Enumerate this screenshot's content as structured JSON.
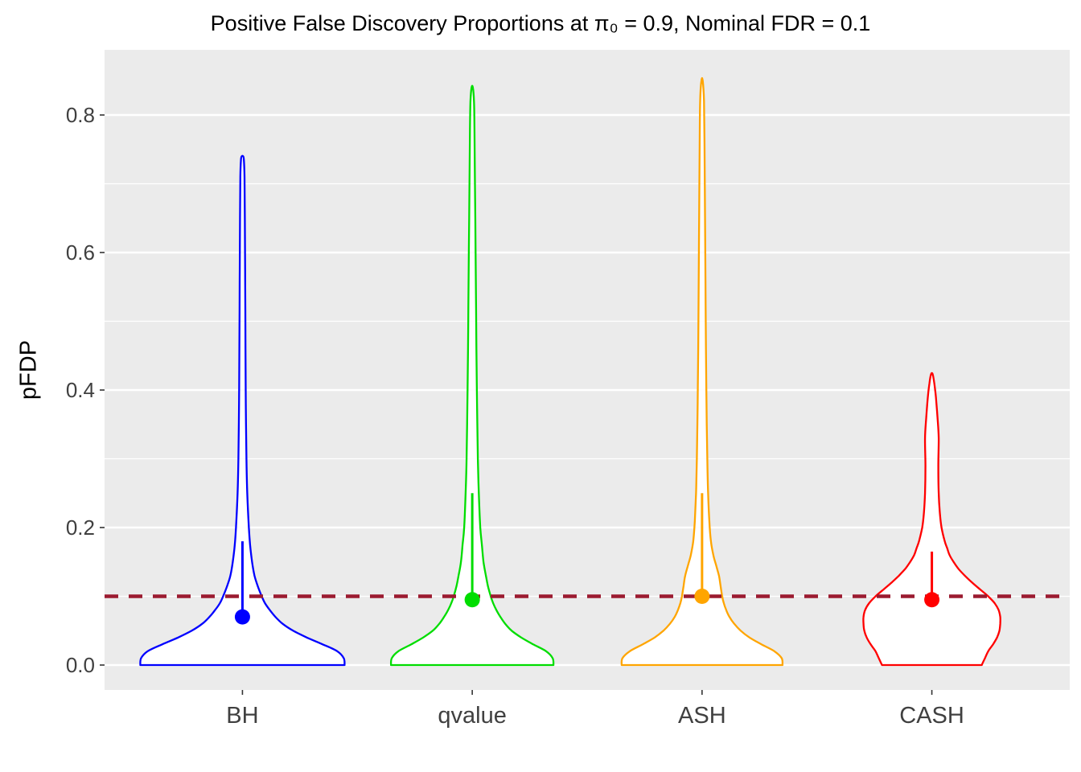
{
  "chart_data": {
    "type": "violin",
    "title": "Positive False Discovery Proportions at π₀ = 0.9, Nominal FDR = 0.1",
    "ylabel": "pFDP",
    "categories": [
      "BH",
      "qvalue",
      "ASH",
      "CASH"
    ],
    "ytick_labels": [
      "0.0",
      "0.2",
      "0.4",
      "0.6",
      "0.8"
    ],
    "yticks": [
      0.0,
      0.2,
      0.4,
      0.6,
      0.8
    ],
    "yticks_minor": [
      0.1,
      0.3,
      0.5,
      0.7
    ],
    "ylim": [
      -0.036,
      0.895
    ],
    "panel_bg": "#EBEBEB",
    "grid_color": "#FFFFFF",
    "tick_label_color": "#404040",
    "legend": "none",
    "reference_line": {
      "value": 0.1,
      "color": "#9B1B30",
      "style": "dashed",
      "meaning": "Nominal FDR = 0.1"
    },
    "series": [
      {
        "name": "BH",
        "color": "#0000FF",
        "mean": 0.07,
        "whisker_top": 0.18,
        "peak": 0.74,
        "profile": [
          [
            0.0,
            127
          ],
          [
            0.01,
            126
          ],
          [
            0.02,
            118
          ],
          [
            0.03,
            100
          ],
          [
            0.04,
            80
          ],
          [
            0.05,
            63
          ],
          [
            0.06,
            50
          ],
          [
            0.07,
            41
          ],
          [
            0.08,
            34
          ],
          [
            0.09,
            28
          ],
          [
            0.1,
            24
          ],
          [
            0.115,
            19
          ],
          [
            0.13,
            15
          ],
          [
            0.15,
            12
          ],
          [
            0.175,
            9.5
          ],
          [
            0.2,
            8
          ],
          [
            0.25,
            6
          ],
          [
            0.3,
            5
          ],
          [
            0.38,
            4.2
          ],
          [
            0.46,
            3.8
          ],
          [
            0.56,
            3.4
          ],
          [
            0.65,
            3.0
          ],
          [
            0.71,
            2.6
          ],
          [
            0.735,
            1.8
          ],
          [
            0.74,
            0.8
          ]
        ]
      },
      {
        "name": "qvalue",
        "color": "#00DD00",
        "mean": 0.095,
        "whisker_top": 0.25,
        "peak": 0.84,
        "profile": [
          [
            0.0,
            101
          ],
          [
            0.01,
            100
          ],
          [
            0.02,
            92
          ],
          [
            0.03,
            76
          ],
          [
            0.04,
            61
          ],
          [
            0.05,
            49
          ],
          [
            0.06,
            41
          ],
          [
            0.07,
            35
          ],
          [
            0.08,
            30
          ],
          [
            0.09,
            26
          ],
          [
            0.1,
            23
          ],
          [
            0.115,
            19.5
          ],
          [
            0.13,
            17
          ],
          [
            0.15,
            14
          ],
          [
            0.175,
            12
          ],
          [
            0.2,
            10
          ],
          [
            0.25,
            8.2
          ],
          [
            0.3,
            7
          ],
          [
            0.38,
            6
          ],
          [
            0.46,
            5.2
          ],
          [
            0.52,
            4.8
          ],
          [
            0.6,
            4.2
          ],
          [
            0.7,
            3.4
          ],
          [
            0.78,
            2.8
          ],
          [
            0.82,
            2.2
          ],
          [
            0.84,
            0.8
          ]
        ]
      },
      {
        "name": "ASH",
        "color": "#FFA500",
        "mean": 0.1,
        "whisker_top": 0.25,
        "peak": 0.85,
        "profile": [
          [
            0.0,
            100
          ],
          [
            0.01,
            99
          ],
          [
            0.02,
            90
          ],
          [
            0.03,
            74
          ],
          [
            0.04,
            59
          ],
          [
            0.05,
            48
          ],
          [
            0.06,
            40
          ],
          [
            0.07,
            34
          ],
          [
            0.08,
            30
          ],
          [
            0.09,
            27
          ],
          [
            0.1,
            25
          ],
          [
            0.115,
            23
          ],
          [
            0.13,
            21
          ],
          [
            0.145,
            17.5
          ],
          [
            0.16,
            14
          ],
          [
            0.18,
            11
          ],
          [
            0.21,
            9
          ],
          [
            0.25,
            7.5
          ],
          [
            0.3,
            6.5
          ],
          [
            0.38,
            5.5
          ],
          [
            0.46,
            4.8
          ],
          [
            0.56,
            4.2
          ],
          [
            0.66,
            3.6
          ],
          [
            0.76,
            3.0
          ],
          [
            0.82,
            2.4
          ],
          [
            0.85,
            0.8
          ]
        ]
      },
      {
        "name": "CASH",
        "color": "#FF0000",
        "mean": 0.095,
        "whisker_top": 0.165,
        "peak": 0.425,
        "profile": [
          [
            0.0,
            62
          ],
          [
            0.01,
            66
          ],
          [
            0.02,
            70
          ],
          [
            0.03,
            76
          ],
          [
            0.04,
            81
          ],
          [
            0.05,
            84
          ],
          [
            0.06,
            85
          ],
          [
            0.07,
            85
          ],
          [
            0.08,
            83
          ],
          [
            0.09,
            78
          ],
          [
            0.1,
            70
          ],
          [
            0.11,
            60
          ],
          [
            0.12,
            50
          ],
          [
            0.13,
            41
          ],
          [
            0.14,
            33
          ],
          [
            0.15,
            27
          ],
          [
            0.16,
            22
          ],
          [
            0.17,
            19
          ],
          [
            0.18,
            16
          ],
          [
            0.2,
            12
          ],
          [
            0.22,
            10
          ],
          [
            0.25,
            8.5
          ],
          [
            0.29,
            8
          ],
          [
            0.33,
            8.5
          ],
          [
            0.36,
            7
          ],
          [
            0.39,
            5
          ],
          [
            0.41,
            3
          ],
          [
            0.423,
            1
          ]
        ]
      }
    ]
  }
}
